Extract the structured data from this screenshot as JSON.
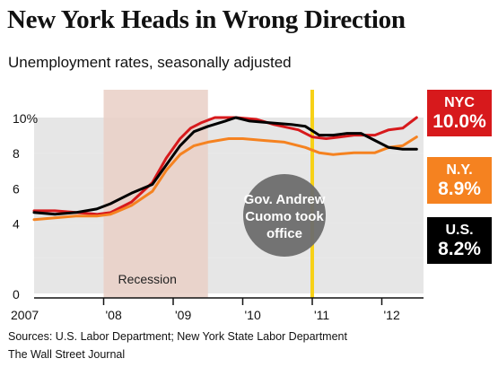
{
  "header": {
    "title": "New York Heads in Wrong Direction",
    "subtitle": "Unemployment rates, seasonally adjusted"
  },
  "footer": {
    "sources": "Sources: U.S. Labor Department; New York State Labor Department",
    "credit": "The Wall Street Journal"
  },
  "badges": [
    {
      "name": "NYC",
      "value": "10.0%",
      "color": "#d7191c"
    },
    {
      "name": "N.Y.",
      "value": "8.9%",
      "color": "#f58220"
    },
    {
      "name": "U.S.",
      "value": "8.2%",
      "color": "#000000"
    }
  ],
  "chart_data": {
    "type": "line",
    "title": "New York Heads in Wrong Direction",
    "subtitle": "Unemployment rates, seasonally adjusted",
    "xlabel": "",
    "ylabel": "",
    "xlim": [
      2007.0,
      2012.6
    ],
    "ylim": [
      0,
      10.5
    ],
    "x_ticks": [
      {
        "x": 2007.0,
        "label": "2007"
      },
      {
        "x": 2008.0,
        "label": "'08"
      },
      {
        "x": 2009.0,
        "label": "'09"
      },
      {
        "x": 2010.0,
        "label": "'10"
      },
      {
        "x": 2011.0,
        "label": "'11"
      },
      {
        "x": 2012.0,
        "label": "'12"
      }
    ],
    "y_ticks": [
      {
        "y": 0,
        "label": "0"
      },
      {
        "y": 2,
        "label": ""
      },
      {
        "y": 4,
        "label": "4"
      },
      {
        "y": 6,
        "label": "6"
      },
      {
        "y": 8,
        "label": "8"
      },
      {
        "y": 10,
        "label": "10%"
      }
    ],
    "grid": "alternating horizontal bands",
    "recession": {
      "start": 2008.0,
      "end": 2009.5,
      "label": "Recession",
      "color": "#e9cfc6"
    },
    "event": {
      "x": 2011.0,
      "label": [
        "Gov. Andrew",
        "Cuomo took",
        "office"
      ],
      "line_color": "#f7d117",
      "bubble_color": "#6d6d6d"
    },
    "series": [
      {
        "name": "NYC",
        "color": "#d7191c",
        "x": [
          2007.0,
          2007.3,
          2007.6,
          2007.9,
          2008.1,
          2008.4,
          2008.7,
          2008.9,
          2009.1,
          2009.25,
          2009.4,
          2009.6,
          2009.9,
          2010.2,
          2010.45,
          2010.8,
          2011.0,
          2011.2,
          2011.4,
          2011.6,
          2011.9,
          2012.1,
          2012.3,
          2012.5
        ],
        "values": [
          4.7,
          4.7,
          4.6,
          4.5,
          4.6,
          5.2,
          6.3,
          7.7,
          8.8,
          9.4,
          9.7,
          10.0,
          10.0,
          9.9,
          9.6,
          9.3,
          8.9,
          8.8,
          8.9,
          9.0,
          9.0,
          9.3,
          9.4,
          10.0
        ]
      },
      {
        "name": "N.Y.",
        "color": "#f58220",
        "x": [
          2007.0,
          2007.3,
          2007.6,
          2007.9,
          2008.1,
          2008.4,
          2008.7,
          2008.9,
          2009.1,
          2009.3,
          2009.5,
          2009.8,
          2010.0,
          2010.3,
          2010.6,
          2010.9,
          2011.1,
          2011.3,
          2011.6,
          2011.9,
          2012.1,
          2012.3,
          2012.5
        ],
        "values": [
          4.2,
          4.3,
          4.4,
          4.4,
          4.5,
          5.0,
          5.8,
          7.0,
          7.9,
          8.4,
          8.6,
          8.8,
          8.8,
          8.7,
          8.6,
          8.3,
          8.0,
          7.9,
          8.0,
          8.0,
          8.3,
          8.4,
          8.9
        ]
      },
      {
        "name": "U.S.",
        "color": "#000000",
        "x": [
          2007.0,
          2007.3,
          2007.6,
          2007.9,
          2008.1,
          2008.4,
          2008.7,
          2008.9,
          2009.1,
          2009.3,
          2009.5,
          2009.75,
          2009.9,
          2010.1,
          2010.4,
          2010.7,
          2010.9,
          2011.1,
          2011.3,
          2011.5,
          2011.7,
          2011.9,
          2012.1,
          2012.3,
          2012.5
        ],
        "values": [
          4.6,
          4.5,
          4.6,
          4.8,
          5.1,
          5.7,
          6.2,
          7.3,
          8.4,
          9.2,
          9.5,
          9.8,
          10.0,
          9.8,
          9.7,
          9.6,
          9.5,
          9.0,
          9.0,
          9.1,
          9.1,
          8.7,
          8.3,
          8.2,
          8.2
        ]
      }
    ]
  }
}
